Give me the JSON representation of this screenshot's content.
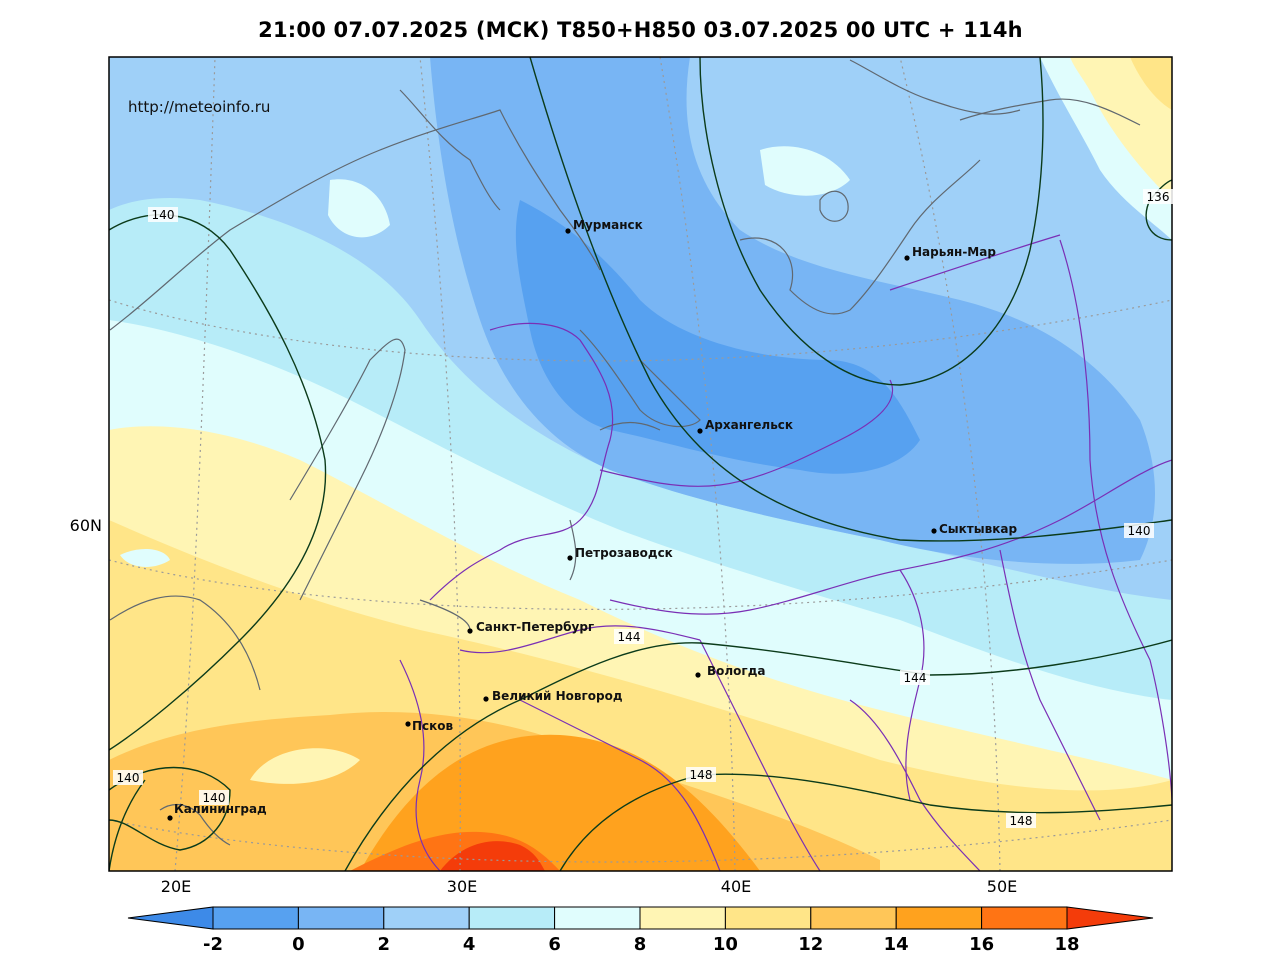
{
  "title": "21:00 07.07.2025 (МСК) T850+H850 03.07.2025 00 UTC + 114h",
  "source": "http://meteoinfo.ru",
  "axes": {
    "lon_labels": [
      "20E",
      "30E",
      "40E",
      "50E"
    ],
    "lat_labels": [
      "60N"
    ]
  },
  "cities": [
    {
      "name": "Мурманск"
    },
    {
      "name": "Нарьян-Мар"
    },
    {
      "name": "Архангельск"
    },
    {
      "name": "Сыктывкар"
    },
    {
      "name": "Петрозаводск"
    },
    {
      "name": "Санкт-Петербург"
    },
    {
      "name": "Вологда"
    },
    {
      "name": "Великий Новгород"
    },
    {
      "name": "Псков"
    },
    {
      "name": "Калининград"
    }
  ],
  "isohypse_labels": [
    "140",
    "136",
    "140",
    "144",
    "144",
    "148",
    "148",
    "140",
    "140"
  ],
  "colorbar": {
    "ticks": [
      "-2",
      "0",
      "2",
      "4",
      "6",
      "8",
      "10",
      "12",
      "14",
      "16",
      "18"
    ],
    "colors": [
      "#3d8ae8",
      "#57a1f0",
      "#78b5f4",
      "#9fd0f8",
      "#b7ecf8",
      "#e0fdfd",
      "#fff5b4",
      "#ffe588",
      "#ffc658",
      "#ffa21e",
      "#ff7414",
      "#f43c0a"
    ]
  },
  "colors": {
    "contour": "#0b3b1a",
    "border": "#7a2fb5",
    "coast": "#606870"
  }
}
